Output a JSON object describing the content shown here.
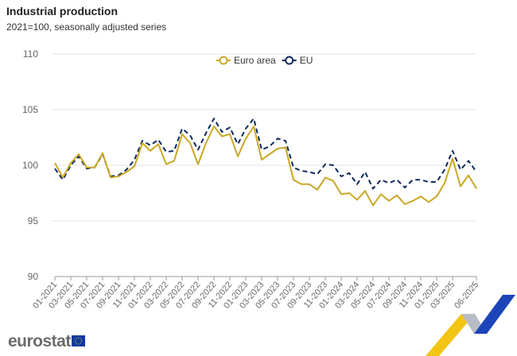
{
  "chart_data": {
    "type": "line",
    "title": "Industrial production",
    "subtitle": "2021=100, seasonally adjusted series",
    "ylim": [
      90,
      110
    ],
    "yticks": [
      90,
      95,
      100,
      105,
      110
    ],
    "grid": true,
    "legend_position": "top-center",
    "x": [
      "01-2021",
      "02-2021",
      "03-2021",
      "04-2021",
      "05-2021",
      "06-2021",
      "07-2021",
      "08-2021",
      "09-2021",
      "10-2021",
      "11-2021",
      "12-2021",
      "01-2022",
      "02-2022",
      "03-2022",
      "04-2022",
      "05-2022",
      "06-2022",
      "07-2022",
      "08-2022",
      "09-2022",
      "10-2022",
      "11-2022",
      "12-2022",
      "01-2023",
      "02-2023",
      "03-2023",
      "04-2023",
      "05-2023",
      "06-2023",
      "07-2023",
      "08-2023",
      "09-2023",
      "10-2023",
      "11-2023",
      "12-2023",
      "01-2024",
      "02-2024",
      "03-2024",
      "04-2024",
      "05-2024",
      "06-2024",
      "07-2024",
      "08-2024",
      "09-2024",
      "10-2024",
      "11-2024",
      "12-2024",
      "01-2025",
      "02-2025",
      "03-2025",
      "04-2025",
      "05-2025",
      "06-2025"
    ],
    "xticks": [
      "01-2021",
      "03-2021",
      "05-2021",
      "07-2021",
      "09-2021",
      "11-2021",
      "01-2022",
      "03-2022",
      "05-2022",
      "07-2022",
      "09-2022",
      "11-2022",
      "01-2023",
      "03-2023",
      "05-2023",
      "07-2023",
      "09-2023",
      "11-2023",
      "01-2024",
      "03-2024",
      "05-2024",
      "07-2024",
      "09-2024",
      "11-2024",
      "01-2025",
      "03-2025",
      "06-2025"
    ],
    "series": [
      {
        "name": "Euro area",
        "color": "#c9a825",
        "style": "solid",
        "values": [
          100.2,
          98.9,
          100.2,
          101.0,
          99.8,
          99.8,
          101.1,
          98.9,
          99.0,
          99.4,
          99.9,
          102.0,
          101.3,
          101.9,
          100.1,
          100.4,
          102.8,
          102.0,
          100.1,
          102.0,
          103.5,
          102.6,
          102.8,
          100.8,
          102.4,
          103.5,
          100.5,
          101.0,
          101.5,
          101.6,
          98.7,
          98.3,
          98.3,
          97.8,
          98.9,
          98.6,
          97.4,
          97.5,
          96.9,
          97.7,
          96.4,
          97.4,
          96.8,
          97.3,
          96.5,
          96.8,
          97.2,
          96.7,
          97.2,
          98.4,
          100.6,
          98.1,
          99.1,
          97.9
        ]
      },
      {
        "name": "EU",
        "color": "#0e2a5c",
        "style": "dashed",
        "values": [
          99.7,
          98.7,
          100.0,
          100.8,
          99.7,
          99.8,
          101.0,
          99.0,
          99.1,
          99.6,
          100.5,
          102.2,
          101.8,
          102.3,
          101.2,
          101.3,
          103.3,
          102.7,
          101.4,
          102.9,
          104.2,
          103.0,
          103.4,
          101.9,
          103.3,
          104.2,
          101.4,
          101.7,
          102.4,
          102.2,
          99.8,
          99.5,
          99.4,
          99.2,
          100.1,
          100.0,
          99.0,
          99.3,
          98.3,
          99.4,
          97.9,
          98.7,
          98.4,
          98.7,
          98.0,
          98.7,
          98.7,
          98.5,
          98.5,
          99.6,
          101.3,
          99.6,
          100.4,
          99.4
        ]
      }
    ]
  },
  "branding": {
    "logo_text": "eurostat"
  }
}
